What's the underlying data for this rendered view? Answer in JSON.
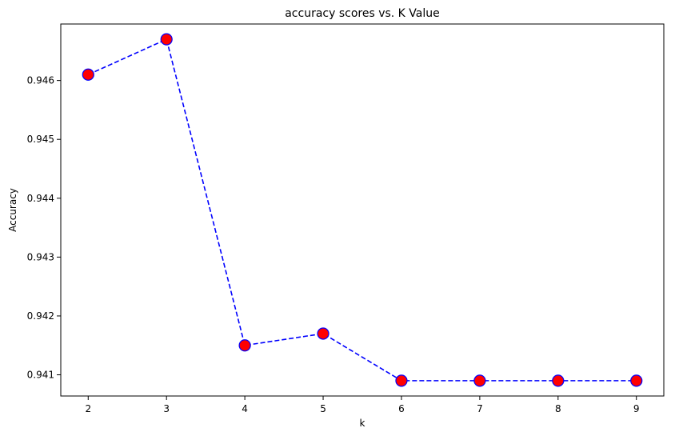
{
  "chart_data": {
    "type": "line",
    "title": "accuracy scores vs. K Value",
    "xlabel": "k",
    "ylabel": "Accuracy",
    "x": [
      2,
      3,
      4,
      5,
      6,
      7,
      8,
      9
    ],
    "series": [
      {
        "values": [
          0.9461,
          0.9467,
          0.9415,
          0.9417,
          0.9409,
          0.9409,
          0.9409,
          0.9409
        ],
        "line_color": "#0000ff",
        "line_style": "dashed",
        "marker": "circle",
        "marker_face_color": "#ff0000",
        "marker_edge_color": "#0000ff"
      }
    ],
    "xticks": [
      "2",
      "3",
      "4",
      "5",
      "6",
      "7",
      "8",
      "9"
    ],
    "yticks": [
      "0.941",
      "0.942",
      "0.943",
      "0.944",
      "0.945",
      "0.946"
    ],
    "xlim": [
      1.65,
      9.35
    ],
    "ylim": [
      0.94064,
      0.94696
    ],
    "grid": false,
    "legend": false
  }
}
